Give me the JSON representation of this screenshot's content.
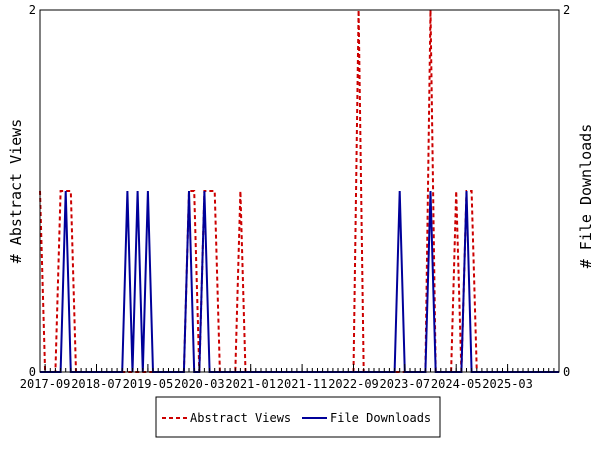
{
  "chart_data": {
    "type": "line",
    "ylabel_left": "# Abstract Views",
    "ylabel_right": "# File Downloads",
    "ylim": [
      0,
      2
    ],
    "y_left_ticks": [
      "0",
      "2"
    ],
    "y_right_ticks": [
      "0",
      "2"
    ],
    "xlim": [
      "2017-08",
      "2026-01"
    ],
    "x_ticks": [
      "2017-09",
      "2018-07",
      "2019-05",
      "2020-03",
      "2021-01",
      "2021-11",
      "2022-09",
      "2023-07",
      "2024-05",
      "2025-03"
    ],
    "grid": false,
    "legend_position": "bottom",
    "series": [
      {
        "name": "Abstract Views",
        "axis": "left",
        "color": "#cc0000",
        "style": "dashed",
        "points": [
          [
            "2017-08",
            1
          ],
          [
            "2017-09",
            0
          ],
          [
            "2017-10",
            0
          ],
          [
            "2017-11",
            0
          ],
          [
            "2017-12",
            1
          ],
          [
            "2018-01",
            1
          ],
          [
            "2018-02",
            1
          ],
          [
            "2018-03",
            0
          ],
          [
            "2018-04",
            0
          ],
          [
            "2018-05",
            0
          ],
          [
            "2018-06",
            0
          ],
          [
            "2018-07",
            0
          ],
          [
            "2018-08",
            0
          ],
          [
            "2018-09",
            0
          ],
          [
            "2018-10",
            0
          ],
          [
            "2018-11",
            0
          ],
          [
            "2018-12",
            0
          ],
          [
            "2019-01",
            0
          ],
          [
            "2019-02",
            0
          ],
          [
            "2019-03",
            0
          ],
          [
            "2019-04",
            0
          ],
          [
            "2019-05",
            0
          ],
          [
            "2019-06",
            0
          ],
          [
            "2019-07",
            0
          ],
          [
            "2019-08",
            0
          ],
          [
            "2019-09",
            0
          ],
          [
            "2019-10",
            0
          ],
          [
            "2019-11",
            0
          ],
          [
            "2019-12",
            0
          ],
          [
            "2020-01",
            1
          ],
          [
            "2020-02",
            1
          ],
          [
            "2020-03",
            0
          ],
          [
            "2020-04",
            1
          ],
          [
            "2020-05",
            1
          ],
          [
            "2020-06",
            1
          ],
          [
            "2020-07",
            0
          ],
          [
            "2020-08",
            0
          ],
          [
            "2020-09",
            0
          ],
          [
            "2020-10",
            0
          ],
          [
            "2020-11",
            1
          ],
          [
            "2020-12",
            0
          ],
          [
            "2021-01",
            0
          ],
          [
            "2021-02",
            0
          ],
          [
            "2021-03",
            0
          ],
          [
            "2021-04",
            0
          ],
          [
            "2021-05",
            0
          ],
          [
            "2021-06",
            0
          ],
          [
            "2021-07",
            0
          ],
          [
            "2021-08",
            0
          ],
          [
            "2021-09",
            0
          ],
          [
            "2021-10",
            0
          ],
          [
            "2021-11",
            0
          ],
          [
            "2021-12",
            0
          ],
          [
            "2022-01",
            0
          ],
          [
            "2022-02",
            0
          ],
          [
            "2022-03",
            0
          ],
          [
            "2022-04",
            0
          ],
          [
            "2022-05",
            0
          ],
          [
            "2022-06",
            0
          ],
          [
            "2022-07",
            0
          ],
          [
            "2022-08",
            0
          ],
          [
            "2022-09",
            0
          ],
          [
            "2022-10",
            2
          ],
          [
            "2022-11",
            0
          ],
          [
            "2022-12",
            0
          ],
          [
            "2023-01",
            0
          ],
          [
            "2023-02",
            0
          ],
          [
            "2023-03",
            0
          ],
          [
            "2023-04",
            0
          ],
          [
            "2023-05",
            0
          ],
          [
            "2023-06",
            0
          ],
          [
            "2023-07",
            0
          ],
          [
            "2023-08",
            0
          ],
          [
            "2023-09",
            0
          ],
          [
            "2023-10",
            0
          ],
          [
            "2023-11",
            0
          ],
          [
            "2023-12",
            2
          ],
          [
            "2024-01",
            0
          ],
          [
            "2024-02",
            0
          ],
          [
            "2024-03",
            0
          ],
          [
            "2024-04",
            0
          ],
          [
            "2024-05",
            1
          ],
          [
            "2024-06",
            0
          ],
          [
            "2024-07",
            1
          ],
          [
            "2024-08",
            1
          ],
          [
            "2024-09",
            0
          ],
          [
            "2024-10",
            0
          ],
          [
            "2024-11",
            0
          ],
          [
            "2024-12",
            0
          ],
          [
            "2025-01",
            0
          ],
          [
            "2025-02",
            0
          ],
          [
            "2025-03",
            0
          ],
          [
            "2025-04",
            0
          ],
          [
            "2025-05",
            0
          ],
          [
            "2025-06",
            0
          ],
          [
            "2025-07",
            0
          ],
          [
            "2025-08",
            0
          ],
          [
            "2025-09",
            0
          ],
          [
            "2025-10",
            0
          ],
          [
            "2025-11",
            0
          ],
          [
            "2025-12",
            0
          ],
          [
            "2026-01",
            0
          ]
        ]
      },
      {
        "name": "File Downloads",
        "axis": "right",
        "color": "#000099",
        "style": "solid",
        "points": [
          [
            "2017-08",
            0
          ],
          [
            "2017-09",
            0
          ],
          [
            "2017-10",
            0
          ],
          [
            "2017-11",
            0
          ],
          [
            "2017-12",
            0
          ],
          [
            "2018-01",
            1
          ],
          [
            "2018-02",
            0
          ],
          [
            "2018-03",
            0
          ],
          [
            "2018-04",
            0
          ],
          [
            "2018-05",
            0
          ],
          [
            "2018-06",
            0
          ],
          [
            "2018-07",
            0
          ],
          [
            "2018-08",
            0
          ],
          [
            "2018-09",
            0
          ],
          [
            "2018-10",
            0
          ],
          [
            "2018-11",
            0
          ],
          [
            "2018-12",
            0
          ],
          [
            "2019-01",
            1
          ],
          [
            "2019-02",
            0
          ],
          [
            "2019-03",
            1
          ],
          [
            "2019-04",
            0
          ],
          [
            "2019-05",
            1
          ],
          [
            "2019-06",
            0
          ],
          [
            "2019-07",
            0
          ],
          [
            "2019-08",
            0
          ],
          [
            "2019-09",
            0
          ],
          [
            "2019-10",
            0
          ],
          [
            "2019-11",
            0
          ],
          [
            "2019-12",
            0
          ],
          [
            "2020-01",
            1
          ],
          [
            "2020-02",
            0
          ],
          [
            "2020-03",
            0
          ],
          [
            "2020-04",
            1
          ],
          [
            "2020-05",
            0
          ],
          [
            "2020-06",
            0
          ],
          [
            "2020-07",
            0
          ],
          [
            "2020-08",
            0
          ],
          [
            "2020-09",
            0
          ],
          [
            "2020-10",
            0
          ],
          [
            "2020-11",
            0
          ],
          [
            "2020-12",
            0
          ],
          [
            "2021-01",
            0
          ],
          [
            "2021-02",
            0
          ],
          [
            "2021-03",
            0
          ],
          [
            "2021-04",
            0
          ],
          [
            "2021-05",
            0
          ],
          [
            "2021-06",
            0
          ],
          [
            "2021-07",
            0
          ],
          [
            "2021-08",
            0
          ],
          [
            "2021-09",
            0
          ],
          [
            "2021-10",
            0
          ],
          [
            "2021-11",
            0
          ],
          [
            "2021-12",
            0
          ],
          [
            "2022-01",
            0
          ],
          [
            "2022-02",
            0
          ],
          [
            "2022-03",
            0
          ],
          [
            "2022-04",
            0
          ],
          [
            "2022-05",
            0
          ],
          [
            "2022-06",
            0
          ],
          [
            "2022-07",
            0
          ],
          [
            "2022-08",
            0
          ],
          [
            "2022-09",
            0
          ],
          [
            "2022-10",
            0
          ],
          [
            "2022-11",
            0
          ],
          [
            "2022-12",
            0
          ],
          [
            "2023-01",
            0
          ],
          [
            "2023-02",
            0
          ],
          [
            "2023-03",
            0
          ],
          [
            "2023-04",
            0
          ],
          [
            "2023-05",
            0
          ],
          [
            "2023-06",
            1
          ],
          [
            "2023-07",
            0
          ],
          [
            "2023-08",
            0
          ],
          [
            "2023-09",
            0
          ],
          [
            "2023-10",
            0
          ],
          [
            "2023-11",
            0
          ],
          [
            "2023-12",
            1
          ],
          [
            "2024-01",
            0
          ],
          [
            "2024-02",
            0
          ],
          [
            "2024-03",
            0
          ],
          [
            "2024-04",
            0
          ],
          [
            "2024-05",
            0
          ],
          [
            "2024-06",
            0
          ],
          [
            "2024-07",
            1
          ],
          [
            "2024-08",
            0
          ],
          [
            "2024-09",
            0
          ],
          [
            "2024-10",
            0
          ],
          [
            "2024-11",
            0
          ],
          [
            "2024-12",
            0
          ],
          [
            "2025-01",
            0
          ],
          [
            "2025-02",
            0
          ],
          [
            "2025-03",
            0
          ],
          [
            "2025-04",
            0
          ],
          [
            "2025-05",
            0
          ],
          [
            "2025-06",
            0
          ],
          [
            "2025-07",
            0
          ],
          [
            "2025-08",
            0
          ],
          [
            "2025-09",
            0
          ],
          [
            "2025-10",
            0
          ],
          [
            "2025-11",
            0
          ],
          [
            "2025-12",
            0
          ],
          [
            "2026-01",
            0
          ]
        ]
      }
    ]
  }
}
